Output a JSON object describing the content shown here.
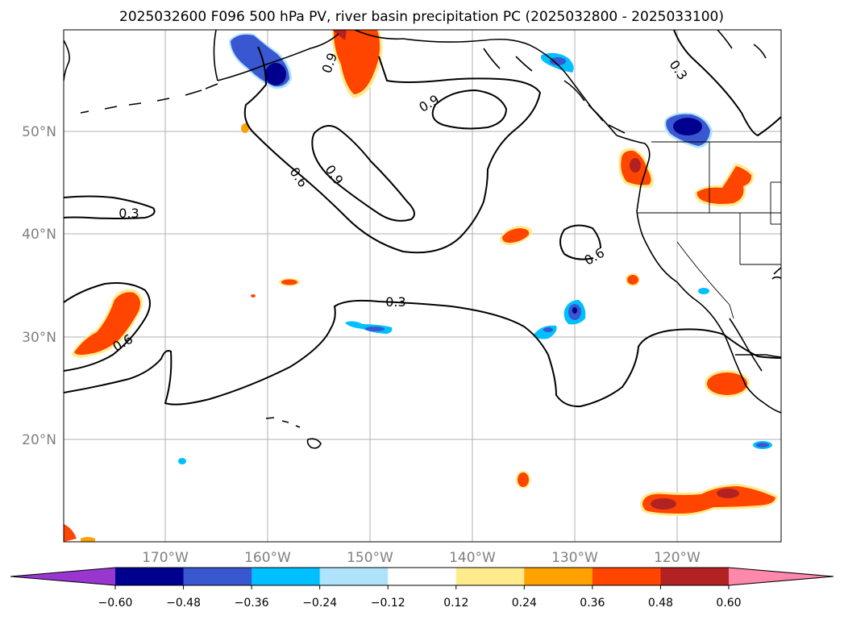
{
  "title": "2025032600 F096 500 hPa PV, river basin precipitation PC (2025032800 - 2025033100)",
  "lat_labels": [
    "50°N",
    "40°N",
    "30°N",
    "20°N"
  ],
  "lon_labels": [
    "170°W",
    "160°W",
    "150°W",
    "140°W",
    "130°W",
    "120°W"
  ],
  "contour_labels": [
    "0.9",
    "0.9",
    "0.9",
    "0.6",
    "0.3",
    "0.3",
    "0.6",
    "0.6",
    "0.3"
  ],
  "colorbar": {
    "ticks": [
      "−0.60",
      "−0.48",
      "−0.36",
      "−0.24",
      "−0.12",
      "0.12",
      "0.24",
      "0.36",
      "0.48",
      "0.60"
    ],
    "under_color": "#9a36d0",
    "over_color": "#ff88ac",
    "colors": [
      "#00008f",
      "#3857d1",
      "#00bfff",
      "#aee3fb",
      "#ffffff",
      "#ffeb8c",
      "#ffa200",
      "#ff4500",
      "#b22222"
    ]
  },
  "palette": {
    "blue_dark": "#00008f",
    "blue_mid": "#3857d1",
    "blue_light": "#00bfff",
    "blue_pale": "#aee3fb",
    "yellow": "#ffeb8c",
    "orange": "#ffa200",
    "red_orange": "#ff4500",
    "dark_red": "#b22222"
  }
}
